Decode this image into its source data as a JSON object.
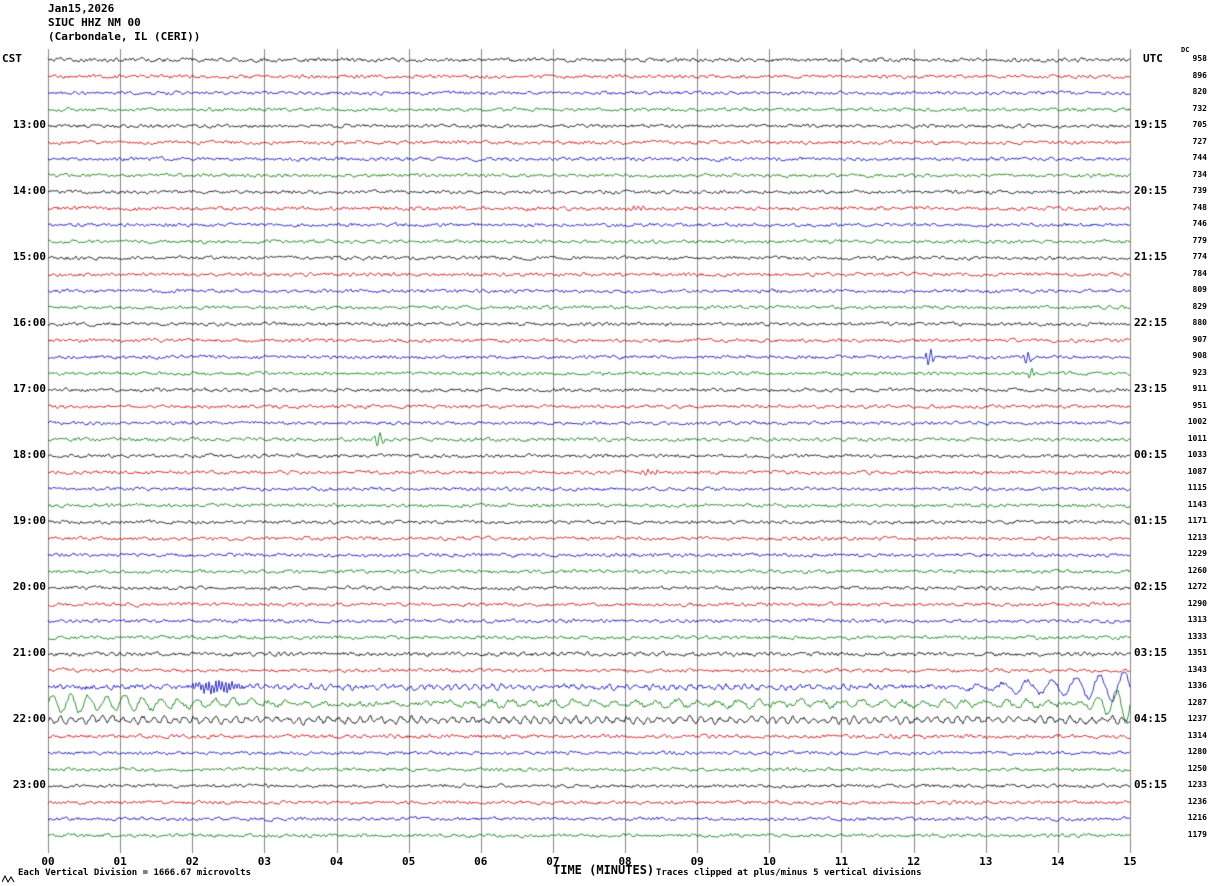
{
  "title": {
    "line1": "Jan15,2026",
    "line2": "SIUC HHZ NM 00",
    "line3": "(Carbondale, IL (CERI))"
  },
  "headers": {
    "left": "CST",
    "right": "UTC",
    "dc": "DC"
  },
  "x_axis": {
    "label": "TIME (MINUTES)",
    "ticks": [
      "00",
      "01",
      "02",
      "03",
      "04",
      "05",
      "06",
      "07",
      "08",
      "09",
      "10",
      "11",
      "12",
      "13",
      "14",
      "15"
    ]
  },
  "footer": {
    "scale_note": "Each Vertical Division = 1666.67 microvolts",
    "clip_note": "Traces clipped at plus/minus 5 vertical divisions"
  },
  "chart_data": {
    "type": "line",
    "title": "SIUC HHZ NM 00 helicorder (Carbondale, IL (CERI)), Jan15,2026",
    "xlabel": "TIME (MINUTES)",
    "x_range": [
      0,
      15
    ],
    "minutes_per_row": 15,
    "grid": true,
    "grid_color": "#888888",
    "noise_amp": 1.3,
    "colors": {
      "black": "#000000",
      "red": "#cc0000",
      "blue": "#0000bb",
      "green": "#007700"
    },
    "color_cycle": [
      "black",
      "red",
      "blue",
      "green"
    ],
    "rows": [
      {
        "color": "black",
        "cst": "",
        "utc": "",
        "dc": "958",
        "noise": 1.1
      },
      {
        "color": "red",
        "cst": "",
        "utc": "",
        "dc": "896",
        "noise": 1
      },
      {
        "color": "blue",
        "cst": "",
        "utc": "",
        "dc": "820",
        "noise": 1
      },
      {
        "color": "green",
        "cst": "",
        "utc": "",
        "dc": "732",
        "noise": 1
      },
      {
        "color": "black",
        "cst": "13:00",
        "utc": "19:15",
        "dc": "705",
        "noise": 1
      },
      {
        "color": "red",
        "cst": "",
        "utc": "",
        "dc": "727",
        "noise": 1
      },
      {
        "color": "blue",
        "cst": "",
        "utc": "",
        "dc": "744",
        "noise": 1
      },
      {
        "color": "green",
        "cst": "",
        "utc": "",
        "dc": "734",
        "noise": 1
      },
      {
        "color": "black",
        "cst": "14:00",
        "utc": "20:15",
        "dc": "739",
        "noise": 1
      },
      {
        "color": "red",
        "cst": "",
        "utc": "",
        "dc": "748",
        "noise": 1.1
      },
      {
        "color": "blue",
        "cst": "",
        "utc": "",
        "dc": "746",
        "noise": 1
      },
      {
        "color": "green",
        "cst": "",
        "utc": "",
        "dc": "779",
        "noise": 1
      },
      {
        "color": "black",
        "cst": "15:00",
        "utc": "21:15",
        "dc": "774",
        "noise": 1
      },
      {
        "color": "red",
        "cst": "",
        "utc": "",
        "dc": "784",
        "noise": 1
      },
      {
        "color": "blue",
        "cst": "",
        "utc": "",
        "dc": "809",
        "noise": 1
      },
      {
        "color": "green",
        "cst": "",
        "utc": "",
        "dc": "829",
        "noise": 1
      },
      {
        "color": "black",
        "cst": "16:00",
        "utc": "22:15",
        "dc": "880",
        "noise": 1
      },
      {
        "color": "red",
        "cst": "",
        "utc": "",
        "dc": "907",
        "noise": 1
      },
      {
        "color": "blue",
        "cst": "",
        "utc": "",
        "dc": "908",
        "noise": 1
      },
      {
        "color": "green",
        "cst": "",
        "utc": "",
        "dc": "923",
        "noise": 1
      },
      {
        "color": "black",
        "cst": "17:00",
        "utc": "23:15",
        "dc": "911",
        "noise": 1
      },
      {
        "color": "red",
        "cst": "",
        "utc": "",
        "dc": "951",
        "noise": 1
      },
      {
        "color": "blue",
        "cst": "",
        "utc": "",
        "dc": "1002",
        "noise": 1
      },
      {
        "color": "green",
        "cst": "",
        "utc": "",
        "dc": "1011",
        "noise": 1
      },
      {
        "color": "black",
        "cst": "18:00",
        "utc": "00:15",
        "dc": "1033",
        "noise": 1
      },
      {
        "color": "red",
        "cst": "",
        "utc": "",
        "dc": "1087",
        "noise": 1
      },
      {
        "color": "blue",
        "cst": "",
        "utc": "",
        "dc": "1115",
        "noise": 1
      },
      {
        "color": "green",
        "cst": "",
        "utc": "",
        "dc": "1143",
        "noise": 1
      },
      {
        "color": "black",
        "cst": "19:00",
        "utc": "01:15",
        "dc": "1171",
        "noise": 1
      },
      {
        "color": "red",
        "cst": "",
        "utc": "",
        "dc": "1213",
        "noise": 1
      },
      {
        "color": "blue",
        "cst": "",
        "utc": "",
        "dc": "1229",
        "noise": 1
      },
      {
        "color": "green",
        "cst": "",
        "utc": "",
        "dc": "1260",
        "noise": 1
      },
      {
        "color": "black",
        "cst": "20:00",
        "utc": "02:15",
        "dc": "1272",
        "noise": 1
      },
      {
        "color": "red",
        "cst": "",
        "utc": "",
        "dc": "1290",
        "noise": 1
      },
      {
        "color": "blue",
        "cst": "",
        "utc": "",
        "dc": "1313",
        "noise": 1
      },
      {
        "color": "green",
        "cst": "",
        "utc": "",
        "dc": "1333",
        "noise": 1
      },
      {
        "color": "black",
        "cst": "21:00",
        "utc": "03:15",
        "dc": "1351",
        "noise": 1.15
      },
      {
        "color": "red",
        "cst": "",
        "utc": "",
        "dc": "1343",
        "noise": 1
      },
      {
        "color": "blue",
        "cst": "",
        "utc": "",
        "dc": "1336",
        "noise": 1.4
      },
      {
        "color": "green",
        "cst": "",
        "utc": "",
        "dc": "1287",
        "noise": 1.4
      },
      {
        "color": "black",
        "cst": "22:00",
        "utc": "04:15",
        "dc": "1237",
        "noise": 1.3
      },
      {
        "color": "red",
        "cst": "",
        "utc": "",
        "dc": "1314",
        "noise": 1.1
      },
      {
        "color": "blue",
        "cst": "",
        "utc": "",
        "dc": "1280",
        "noise": 1
      },
      {
        "color": "green",
        "cst": "",
        "utc": "",
        "dc": "1250",
        "noise": 1
      },
      {
        "color": "black",
        "cst": "23:00",
        "utc": "05:15",
        "dc": "1233",
        "noise": 1
      },
      {
        "color": "red",
        "cst": "",
        "utc": "",
        "dc": "1236",
        "noise": 1
      },
      {
        "color": "blue",
        "cst": "",
        "utc": "",
        "dc": "1216",
        "noise": 1
      },
      {
        "color": "green",
        "cst": "",
        "utc": "",
        "dc": "1179",
        "noise": 1
      }
    ],
    "events": [
      {
        "row": 38,
        "type": "burst",
        "start": 1.95,
        "end": 2.75,
        "amp": 6,
        "freq": 22
      },
      {
        "row": 38,
        "type": "wave",
        "start": 2.75,
        "end": 11.5,
        "amp": 1.4,
        "freq": 8
      },
      {
        "row": 38,
        "type": "grow",
        "start": 11.5,
        "end": 15,
        "amp": 16,
        "freq": 3
      },
      {
        "row": 39,
        "type": "decay",
        "start": 0,
        "end": 5.5,
        "amp": 9,
        "freq": 4
      },
      {
        "row": 39,
        "type": "wave",
        "start": 5.5,
        "end": 14,
        "amp": 3,
        "freq": 3.5
      },
      {
        "row": 39,
        "type": "grow",
        "start": 14,
        "end": 15,
        "amp": 22,
        "freq": 4
      },
      {
        "row": 40,
        "type": "wave",
        "start": 0,
        "end": 15,
        "amp": 2.5,
        "freq": 7
      },
      {
        "row": 18,
        "type": "spike",
        "start": 12.15,
        "end": 12.3,
        "amp": 8,
        "freq": 14
      },
      {
        "row": 18,
        "type": "spike",
        "start": 13.5,
        "end": 13.65,
        "amp": 6,
        "freq": 14
      },
      {
        "row": 19,
        "type": "spike",
        "start": 13.55,
        "end": 13.7,
        "amp": 5,
        "freq": 14
      },
      {
        "row": 23,
        "type": "spike",
        "start": 4.5,
        "end": 4.68,
        "amp": 7,
        "freq": 12
      },
      {
        "row": 25,
        "type": "burst",
        "start": 8.1,
        "end": 8.6,
        "amp": 2.5,
        "freq": 15
      },
      {
        "row": 9,
        "type": "burst",
        "start": 7.9,
        "end": 8.3,
        "amp": 2,
        "freq": 15
      }
    ]
  }
}
